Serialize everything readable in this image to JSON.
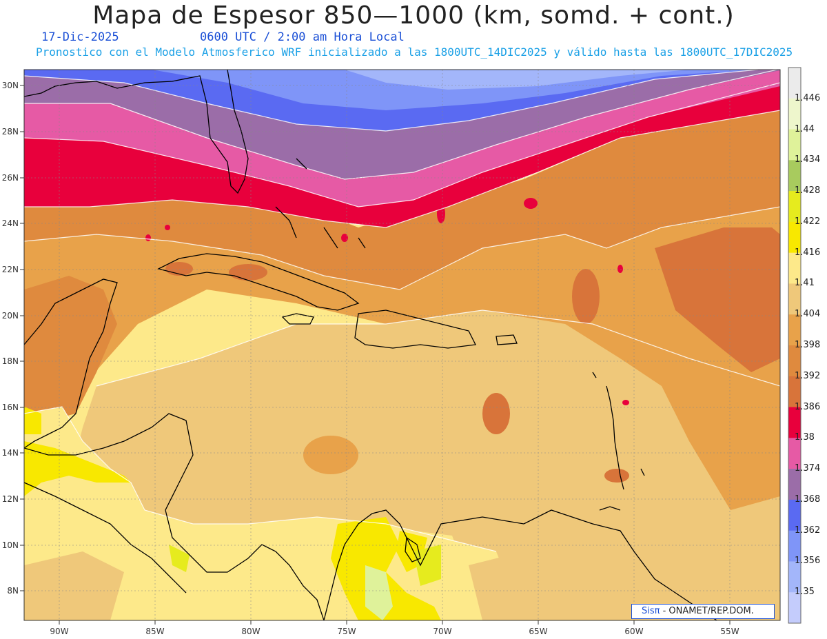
{
  "header": {
    "title": "Mapa de Espesor 850—1000 (km, somd. + cont.)",
    "date": "17-Dic-2025",
    "time": "0600 UTC / 2:00 am Hora Local",
    "model_info": "Pronostico con el Modelo Atmosferico WRF inicializado a las 1800UTC_14DIC2025 y válido hasta las  1800UTC_17DIC2025"
  },
  "axes": {
    "lon_labels": [
      "90W",
      "85W",
      "80W",
      "75W",
      "70W",
      "65W",
      "60W",
      "55W"
    ],
    "lat_labels": [
      "30N",
      "28N",
      "26N",
      "24N",
      "22N",
      "20N",
      "18N",
      "16N",
      "14N",
      "12N",
      "10N",
      "8N"
    ]
  },
  "legend": {
    "levels": [
      "1.446",
      "1.44",
      "1.434",
      "1.428",
      "1.422",
      "1.416",
      "1.41",
      "1.404",
      "1.398",
      "1.392",
      "1.386",
      "1.38",
      "1.374",
      "1.368",
      "1.362",
      "1.356",
      "1.35"
    ],
    "colors": [
      "#ebebeb",
      "#eef6cc",
      "#dff29a",
      "#a8cb5e",
      "#e6eb1e",
      "#f8e800",
      "#fde98a",
      "#efc87a",
      "#e8a24a",
      "#df8a3e",
      "#d8743a",
      "#e8003c",
      "#e65aa5",
      "#9b6da8",
      "#5a6af2",
      "#7f95f8",
      "#a3b6fa",
      "#c4ccfc"
    ]
  },
  "credit": {
    "sis": "Sisπ",
    "org": "- ONAMET/REP.DOM."
  }
}
